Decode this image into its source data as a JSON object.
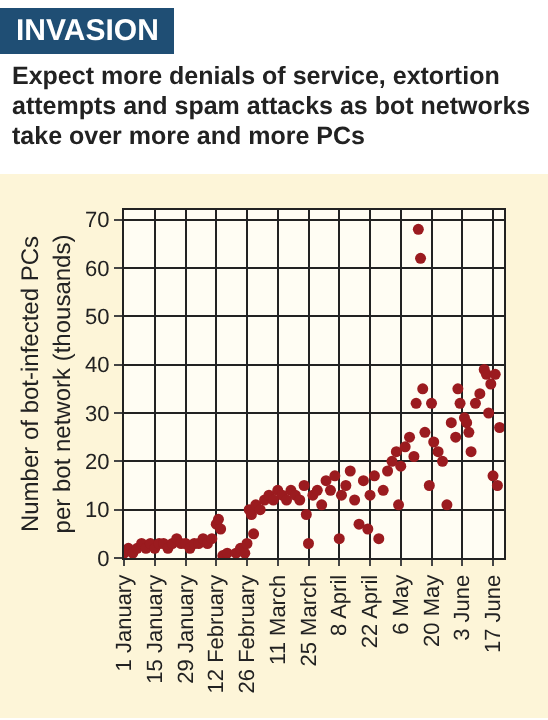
{
  "chart_data": {
    "type": "scatter",
    "title": "INVASION",
    "subtitle": "Expect more denials of service, extortion attempts and spam attacks as bot networks take over more and more PCs",
    "ylabel": "Number of bot-infected PCs per bot network (thousands)",
    "x": [
      "--01-01",
      "--01-03",
      "--01-05",
      "--01-07",
      "--01-09",
      "--01-11",
      "--01-13",
      "--01-15",
      "--01-17",
      "--01-19",
      "--01-21",
      "--01-23",
      "--01-25",
      "--01-27",
      "--01-29",
      "--01-31",
      "--02-02",
      "--02-04",
      "--02-06",
      "--02-08",
      "--02-10",
      "--02-12",
      "--02-13",
      "--02-14",
      "--02-15",
      "--02-17",
      "--02-21",
      "--02-23",
      "--02-25",
      "--02-26",
      "--02-27",
      "--02-28",
      "--02-29",
      "--03-01",
      "--03-03",
      "--03-05",
      "--03-07",
      "--03-09",
      "--03-11",
      "--03-13",
      "--03-15",
      "--03-17",
      "--03-19",
      "--03-21",
      "--03-23",
      "--03-24",
      "--03-25",
      "--03-27",
      "--03-29",
      "--03-31",
      "--04-02",
      "--04-04",
      "--04-06",
      "--04-08",
      "--04-09",
      "--04-11",
      "--04-13",
      "--04-15",
      "--04-17",
      "--04-19",
      "--04-21",
      "--04-22",
      "--04-24",
      "--04-26",
      "--04-28",
      "--04-30",
      "--05-02",
      "--05-04",
      "--05-05",
      "--05-06",
      "--05-08",
      "--05-10",
      "--05-12",
      "--05-13",
      "--05-14",
      "--05-15",
      "--05-16",
      "--05-17",
      "--05-19",
      "--05-20",
      "--05-21",
      "--05-23",
      "--05-25",
      "--05-27",
      "--05-29",
      "--05-31",
      "--06-01",
      "--06-02",
      "--06-04",
      "--06-05",
      "--06-06",
      "--06-07",
      "--06-09",
      "--06-11",
      "--06-13",
      "--06-14",
      "--06-15",
      "--06-16",
      "--06-17",
      "--06-18",
      "--06-19",
      "--06-20"
    ],
    "values": [
      1,
      2,
      1,
      2,
      3,
      2,
      3,
      2,
      3,
      3,
      2,
      3,
      4,
      3,
      3,
      2,
      3,
      3,
      4,
      3,
      4,
      7,
      8,
      6,
      0.5,
      1,
      1,
      2,
      1,
      3,
      10,
      9,
      5,
      11,
      10,
      12,
      13,
      12,
      14,
      13,
      12,
      14,
      13,
      12,
      15,
      9,
      3,
      13,
      14,
      11,
      16,
      14,
      17,
      4,
      13,
      15,
      18,
      12,
      7,
      16,
      6,
      13,
      17,
      4,
      14,
      18,
      20,
      22,
      11,
      19,
      23,
      25,
      21,
      32,
      68,
      62,
      35,
      26,
      15,
      32,
      24,
      22,
      20,
      11,
      28,
      25,
      35,
      32,
      29,
      28,
      26,
      22,
      32,
      34,
      39,
      38,
      30,
      36,
      17,
      38,
      15,
      27
    ],
    "color": "#9b1b1f",
    "marker": "circle",
    "xlim": [
      "--01-01",
      "--06-22"
    ],
    "xticks": [
      {
        "value": "--01-01",
        "label": "1 January"
      },
      {
        "value": "--01-15",
        "label": "15 January"
      },
      {
        "value": "--01-29",
        "label": "29 January"
      },
      {
        "value": "--02-12",
        "label": "12 February"
      },
      {
        "value": "--02-26",
        "label": "26 February"
      },
      {
        "value": "--03-11",
        "label": "11 March"
      },
      {
        "value": "--03-25",
        "label": "25 March"
      },
      {
        "value": "--04-08",
        "label": "8 April"
      },
      {
        "value": "--04-22",
        "label": "22 April"
      },
      {
        "value": "--05-06",
        "label": "6 May"
      },
      {
        "value": "--05-20",
        "label": "20 May"
      },
      {
        "value": "--06-03",
        "label": "3 June"
      },
      {
        "value": "--06-17",
        "label": "17 June"
      }
    ],
    "ylim": [
      0,
      72
    ],
    "yticks": [
      0,
      10,
      20,
      30,
      40,
      50,
      60,
      70
    ],
    "grid": true
  }
}
